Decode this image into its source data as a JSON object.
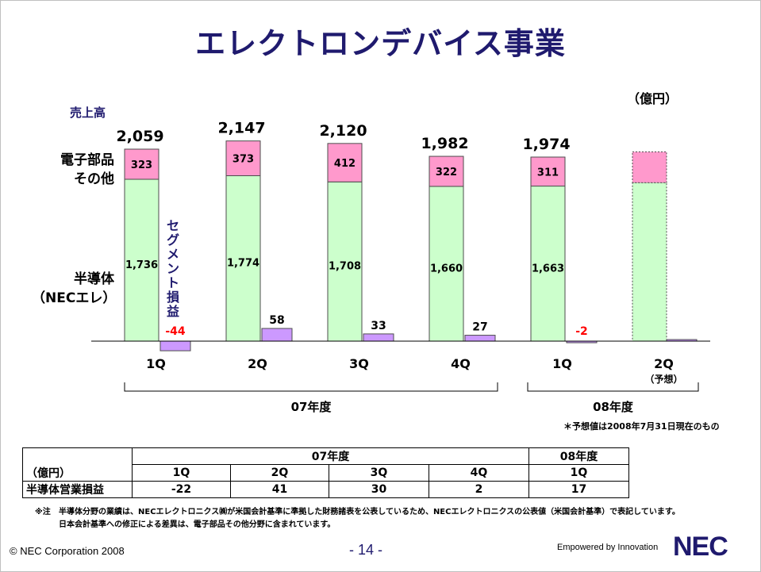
{
  "title": "エレクトロンデバイス事業",
  "unit_label": "（億円）",
  "labels": {
    "sales": "売上高",
    "parts_line1": "電子部品",
    "parts_line2": "その他",
    "semi_line1": "半導体",
    "semi_line2": "（NECエレ）",
    "segment": [
      "セ",
      "グ",
      "メ",
      "ン",
      "ト",
      "損",
      "益"
    ]
  },
  "chart_data": {
    "type": "bar",
    "categories": [
      "1Q",
      "2Q",
      "3Q",
      "4Q",
      "1Q",
      "2Q"
    ],
    "forecast_sub": "（予想）",
    "groups": [
      {
        "label": "07年度",
        "from": 0,
        "to": 3
      },
      {
        "label": "08年度",
        "from": 4,
        "to": 5
      }
    ],
    "totals": [
      2059,
      2147,
      2120,
      1982,
      1974,
      null
    ],
    "series": [
      {
        "name": "半導体（NECエレ）",
        "values": [
          1736,
          1774,
          1708,
          1660,
          1663,
          null
        ],
        "color": "#ccffcc"
      },
      {
        "name": "電子部品その他",
        "values": [
          323,
          373,
          412,
          322,
          311,
          null
        ],
        "color": "#ff99cc"
      },
      {
        "name": "セグメント損益",
        "values": [
          -44,
          58,
          33,
          27,
          -2,
          null
        ],
        "color": "#cc99ff"
      }
    ],
    "forecast": {
      "index": 5,
      "semi_approx": 1700,
      "parts_approx": 330,
      "segment_approx": 5
    },
    "segment_label_texts": [
      "-44",
      "58",
      "33",
      "27",
      "-2",
      ""
    ],
    "negative_color": "#ff0000"
  },
  "forecast_note": "＊予想値は2008年7月31日現在のもの",
  "op_table": {
    "unit": "（億円）",
    "fy07": "07年度",
    "fy08": "08年度",
    "quarters": [
      "1Q",
      "2Q",
      "3Q",
      "4Q",
      "1Q"
    ],
    "row_label": "半導体営業損益",
    "values": [
      "-22",
      "41",
      "30",
      "2",
      "17"
    ]
  },
  "note": {
    "mark": "※注",
    "line1": "半導体分野の業績は、NECエレクトロニクス㈱が米国会計基準に準拠した財務諸表を公表しているため、NECエレクトロニクスの公表値（米国会計基準）で表記しています。",
    "line2": "日本会計基準への修正による差異は、電子部品その他分野に含まれています。"
  },
  "footer": {
    "copyright": "© NEC Corporation 2008",
    "page": "- 14 -",
    "tagline": "Empowered by Innovation",
    "logo": "NEC"
  }
}
